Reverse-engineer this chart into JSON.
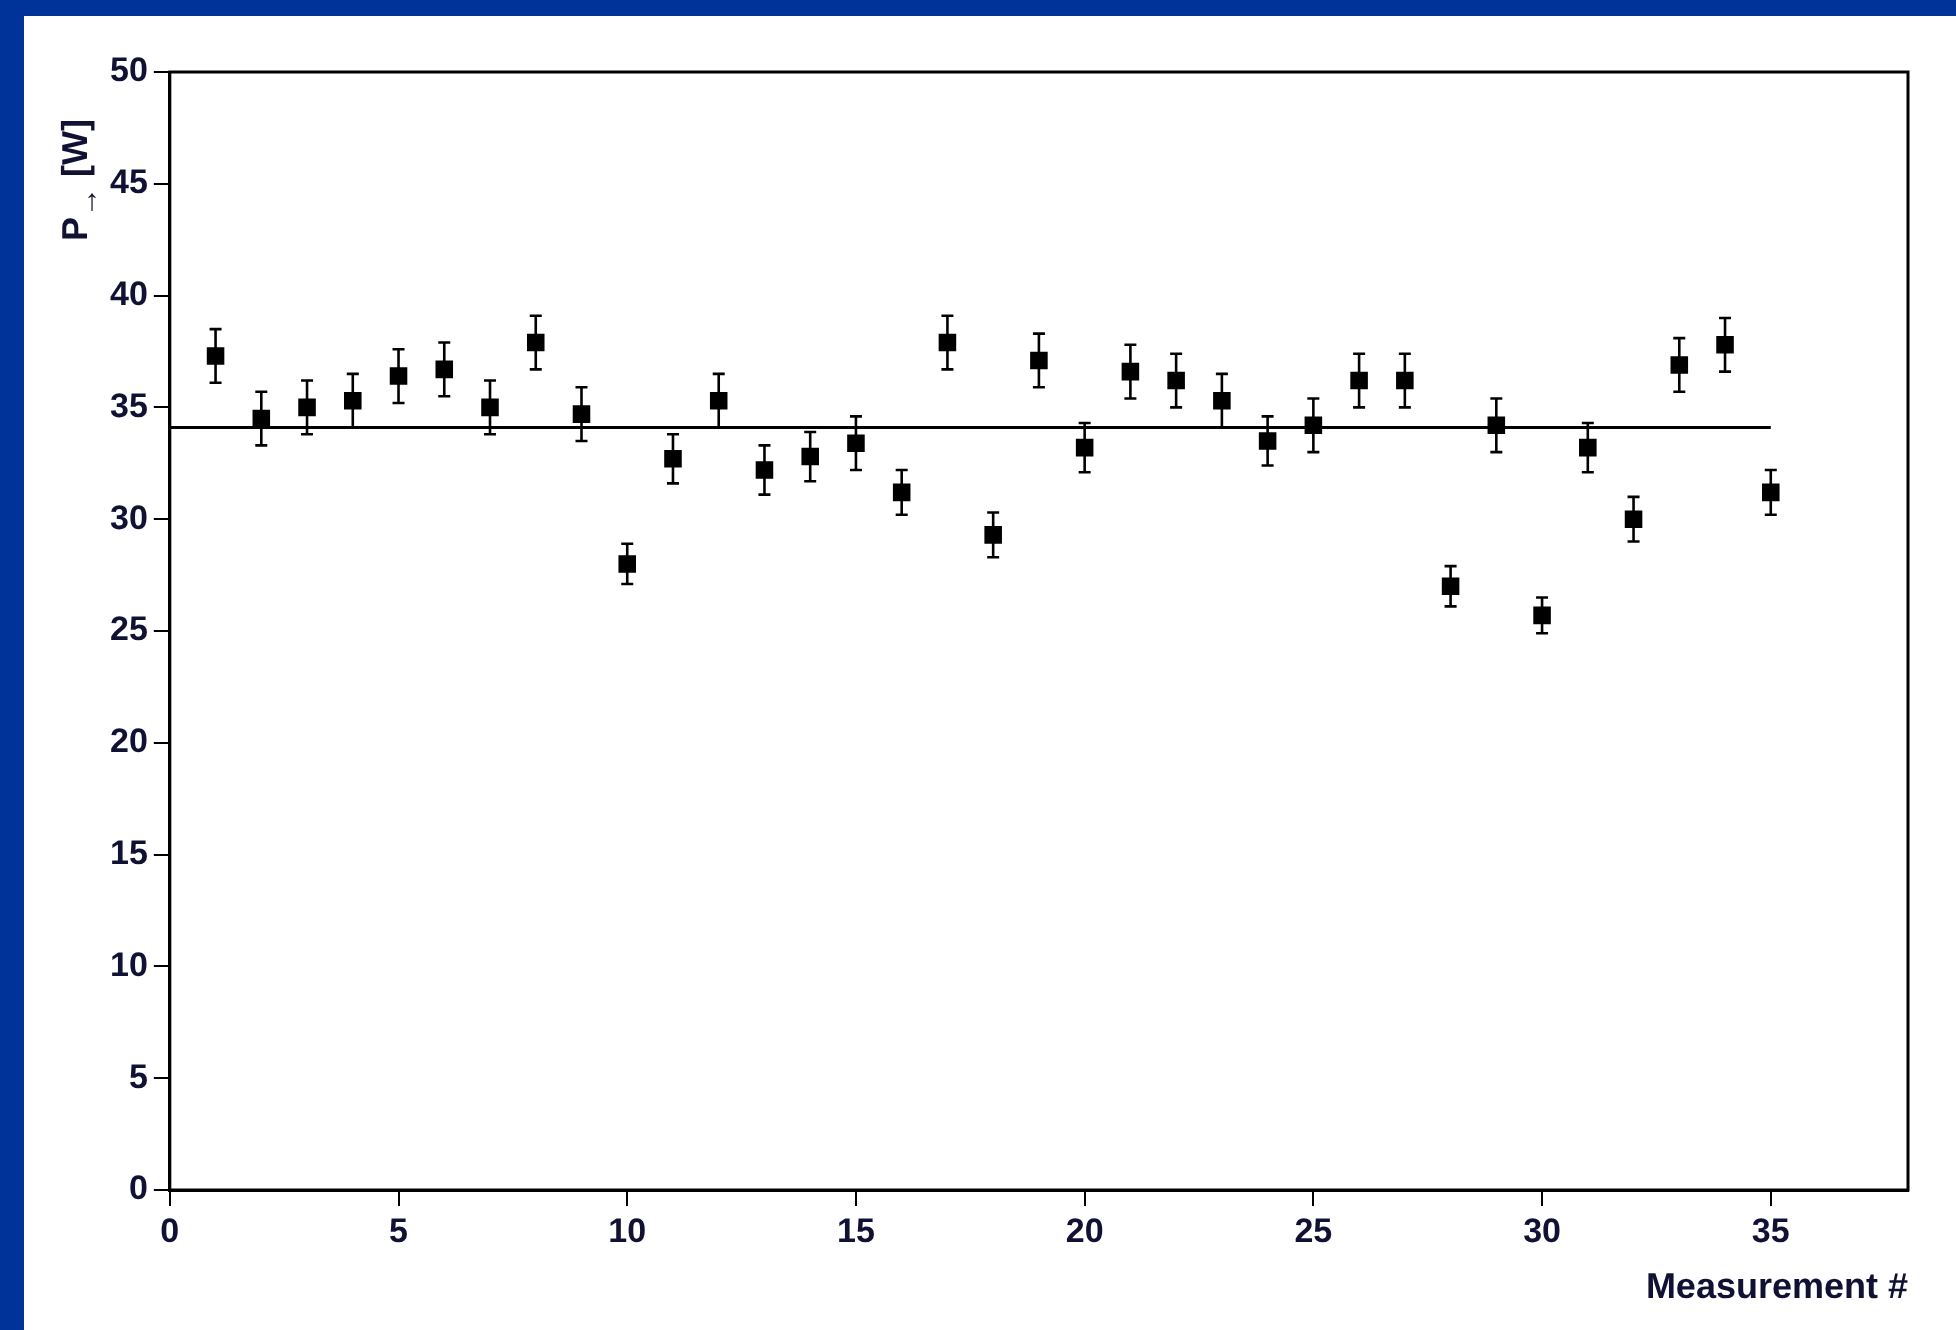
{
  "chart_data": {
    "type": "scatter",
    "xlabel": "Measurement #",
    "ylabel": "P$_{→}$ [W]",
    "xlim": [
      0,
      38
    ],
    "xticks": [
      0,
      5,
      10,
      15,
      20,
      25,
      30,
      35
    ],
    "ylim": [
      0,
      50
    ],
    "yticks": [
      0,
      5,
      10,
      15,
      20,
      25,
      30,
      35,
      40,
      45,
      50
    ],
    "series": [
      {
        "type": "scatter",
        "color": "#000000",
        "marker": "square",
        "x": [
          1,
          2,
          3,
          4,
          5,
          6,
          7,
          8,
          9,
          10,
          11,
          12,
          13,
          14,
          15,
          16,
          17,
          18,
          19,
          20,
          21,
          22,
          23,
          24,
          25,
          26,
          27,
          28,
          29,
          30,
          31,
          32,
          33,
          34,
          35
        ],
        "values": [
          37.3,
          34.5,
          35.0,
          35.3,
          36.4,
          36.7,
          35.0,
          37.9,
          34.7,
          28.0,
          32.7,
          35.3,
          32.2,
          32.8,
          33.4,
          31.2,
          37.9,
          29.3,
          37.1,
          33.2,
          36.6,
          36.2,
          35.3,
          33.5,
          34.2,
          36.2,
          36.2,
          27.0,
          34.2,
          25.7,
          33.2,
          30.0,
          36.9,
          37.8,
          31.2
        ],
        "errors": [
          1.2,
          1.2,
          1.2,
          1.2,
          1.2,
          1.2,
          1.2,
          1.2,
          1.2,
          0.9,
          1.1,
          1.2,
          1.1,
          1.1,
          1.2,
          1.0,
          1.2,
          1.0,
          1.2,
          1.1,
          1.2,
          1.2,
          1.2,
          1.1,
          1.2,
          1.2,
          1.2,
          0.9,
          1.2,
          0.8,
          1.1,
          1.0,
          1.2,
          1.2,
          1.0
        ]
      },
      {
        "type": "line",
        "color": "#000000",
        "marker": "none",
        "x": [
          0,
          35
        ],
        "values": [
          34.1,
          34.1
        ]
      }
    ]
  }
}
